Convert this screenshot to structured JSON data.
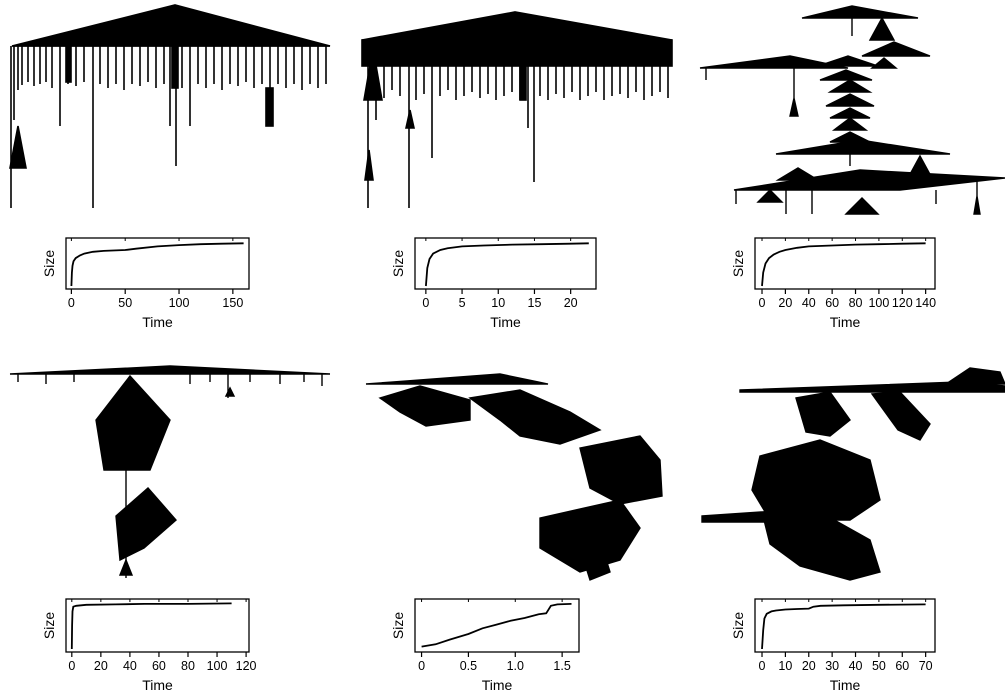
{
  "chart_data": [
    {
      "type": "line",
      "panel": "top-left",
      "xlabel": "Time",
      "ylabel": "Size",
      "xlim": [
        -5,
        165
      ],
      "x_ticks": [
        0,
        50,
        100,
        150
      ],
      "x_tick_labels": [
        "0",
        "50",
        "100",
        "150"
      ],
      "y_ticks": [],
      "series": [
        {
          "x": [
            0,
            0.5,
            1,
            2,
            4,
            8,
            12,
            20,
            30,
            50,
            60,
            80,
            100,
            120,
            140,
            160
          ],
          "y": [
            0.0,
            0.3,
            0.45,
            0.55,
            0.62,
            0.68,
            0.72,
            0.76,
            0.78,
            0.8,
            0.83,
            0.88,
            0.91,
            0.93,
            0.94,
            0.95
          ]
        }
      ]
    },
    {
      "type": "line",
      "panel": "top-middle",
      "xlabel": "Time",
      "ylabel": "Size",
      "xlim": [
        -1.5,
        23.5
      ],
      "x_ticks": [
        0,
        5,
        10,
        15,
        20
      ],
      "x_tick_labels": [
        "0",
        "5",
        "10",
        "15",
        "20"
      ],
      "y_ticks": [],
      "series": [
        {
          "x": [
            0,
            0.2,
            0.5,
            1,
            2,
            3,
            5,
            8,
            12,
            16,
            20,
            22.5
          ],
          "y": [
            0.0,
            0.4,
            0.6,
            0.72,
            0.8,
            0.84,
            0.88,
            0.9,
            0.92,
            0.93,
            0.94,
            0.95
          ]
        }
      ]
    },
    {
      "type": "line",
      "panel": "top-right",
      "xlabel": "Time",
      "ylabel": "Size",
      "xlim": [
        -6,
        148
      ],
      "x_ticks": [
        0,
        20,
        40,
        60,
        80,
        100,
        120,
        140
      ],
      "x_tick_labels": [
        "0",
        "20",
        "40",
        "60",
        "80",
        "100",
        "120",
        "140"
      ],
      "y_ticks": [],
      "series": [
        {
          "x": [
            0,
            1,
            3,
            6,
            10,
            15,
            20,
            30,
            40,
            60,
            80,
            100,
            120,
            140
          ],
          "y": [
            0.0,
            0.3,
            0.5,
            0.62,
            0.7,
            0.76,
            0.8,
            0.85,
            0.88,
            0.9,
            0.92,
            0.93,
            0.94,
            0.95
          ]
        }
      ]
    },
    {
      "type": "line",
      "panel": "bottom-left",
      "xlabel": "Time",
      "ylabel": "Size",
      "xlim": [
        -4,
        122
      ],
      "x_ticks": [
        0,
        20,
        40,
        60,
        80,
        100,
        120
      ],
      "x_tick_labels": [
        "0",
        "20",
        "40",
        "60",
        "80",
        "100",
        "120"
      ],
      "y_ticks": [],
      "series": [
        {
          "x": [
            0,
            0.2,
            0.5,
            1,
            3,
            10,
            30,
            50,
            80,
            110
          ],
          "y": [
            0.0,
            0.5,
            0.8,
            0.9,
            0.92,
            0.94,
            0.95,
            0.96,
            0.96,
            0.97
          ]
        }
      ]
    },
    {
      "type": "line",
      "panel": "bottom-middle",
      "xlabel": "Time",
      "ylabel": "Size",
      "xlim": [
        -0.07,
        1.68
      ],
      "x_ticks": [
        0,
        0.5,
        1.0,
        1.5
      ],
      "x_tick_labels": [
        "0",
        "0.5",
        "1.0",
        "1.5"
      ],
      "y_ticks": [],
      "series": [
        {
          "x": [
            0,
            0.15,
            0.3,
            0.5,
            0.65,
            0.8,
            0.95,
            1.1,
            1.25,
            1.33,
            1.38,
            1.45,
            1.6
          ],
          "y": [
            0.05,
            0.1,
            0.2,
            0.32,
            0.44,
            0.52,
            0.6,
            0.66,
            0.74,
            0.76,
            0.92,
            0.95,
            0.96
          ]
        }
      ]
    },
    {
      "type": "line",
      "panel": "bottom-right",
      "xlabel": "Time",
      "ylabel": "Size",
      "xlim": [
        -3,
        74
      ],
      "x_ticks": [
        0,
        10,
        20,
        30,
        40,
        50,
        60,
        70
      ],
      "x_tick_labels": [
        "0",
        "10",
        "20",
        "30",
        "40",
        "50",
        "60",
        "70"
      ],
      "y_ticks": [],
      "series": [
        {
          "x": [
            0,
            0.5,
            1,
            2,
            4,
            6,
            10,
            15,
            20,
            22,
            25,
            35,
            50,
            70
          ],
          "y": [
            0.0,
            0.4,
            0.65,
            0.75,
            0.8,
            0.82,
            0.84,
            0.85,
            0.86,
            0.9,
            0.92,
            0.93,
            0.94,
            0.95
          ]
        }
      ]
    }
  ]
}
